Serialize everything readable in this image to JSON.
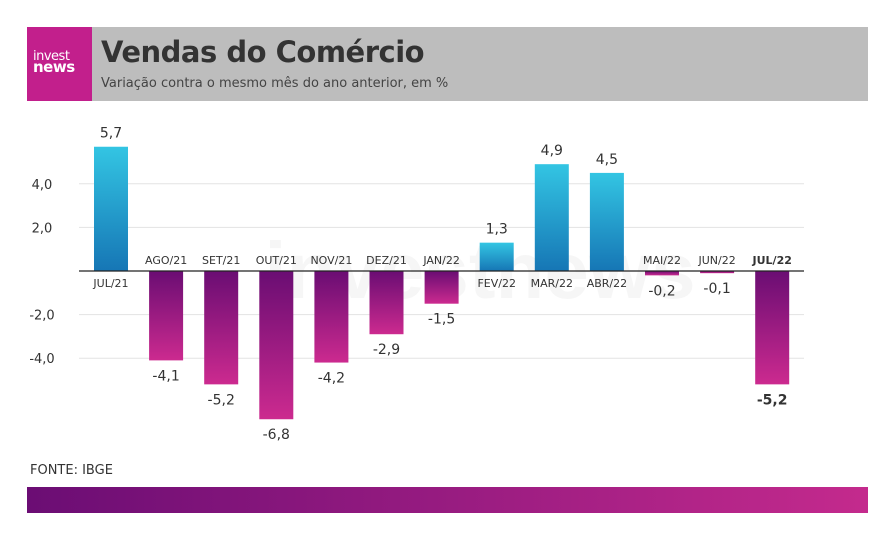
{
  "header": {
    "logo_line1": "invest",
    "logo_line2": "news",
    "title": "Vendas do Comércio",
    "subtitle": "Variação contra o mesmo mês do ano anterior, em %"
  },
  "source": "FONTE: IBGE",
  "watermark": "investnews",
  "colors": {
    "positive_top": "#33c5e3",
    "positive_bottom": "#1676b5",
    "negative_top": "#6a0d73",
    "negative_bottom": "#cc2a8f",
    "header_bg": "#bdbdbd",
    "logo_bg": "#c21f8c"
  },
  "chart_data": {
    "type": "bar",
    "title": "Vendas do Comércio",
    "subtitle": "Variação contra o mesmo mês do ano anterior, em %",
    "categories": [
      "JUL/21",
      "AGO/21",
      "SET/21",
      "OUT/21",
      "NOV/21",
      "DEZ/21",
      "JAN/22",
      "FEV/22",
      "MAR/22",
      "ABR/22",
      "MAI/22",
      "JUN/22",
      "JUL/22"
    ],
    "values": [
      5.7,
      -4.1,
      -5.2,
      -6.8,
      -4.2,
      -2.9,
      -1.5,
      1.3,
      4.9,
      4.5,
      -0.2,
      -0.1,
      -5.2
    ],
    "value_labels": [
      "5,7",
      "-4,1",
      "-5,2",
      "-6,8",
      "-4,2",
      "-2,9",
      "-1,5",
      "1,3",
      "4,9",
      "4,5",
      "-0,2",
      "-0,1",
      "-5,2"
    ],
    "highlight_index": 12,
    "yticks": [
      4.0,
      2.0,
      -2.0,
      -4.0
    ],
    "ytick_labels": [
      "4,0",
      "2,0",
      "-2,0",
      "-4,0"
    ],
    "ylim": [
      -7,
      6
    ],
    "grid": true
  }
}
